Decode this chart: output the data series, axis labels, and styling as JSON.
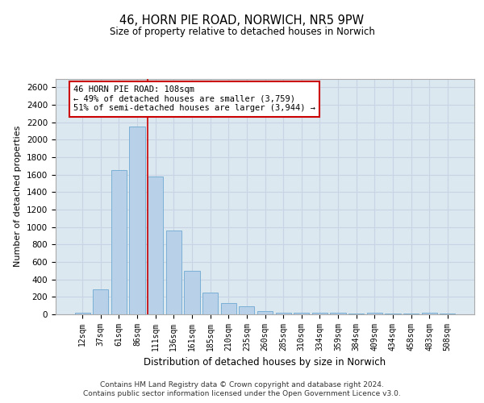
{
  "title1": "46, HORN PIE ROAD, NORWICH, NR5 9PW",
  "title2": "Size of property relative to detached houses in Norwich",
  "xlabel": "Distribution of detached houses by size in Norwich",
  "ylabel": "Number of detached properties",
  "categories": [
    "12sqm",
    "37sqm",
    "61sqm",
    "86sqm",
    "111sqm",
    "136sqm",
    "161sqm",
    "185sqm",
    "210sqm",
    "235sqm",
    "260sqm",
    "285sqm",
    "310sqm",
    "334sqm",
    "359sqm",
    "384sqm",
    "409sqm",
    "434sqm",
    "458sqm",
    "483sqm",
    "508sqm"
  ],
  "values": [
    20,
    285,
    1650,
    2150,
    1580,
    960,
    500,
    245,
    125,
    95,
    35,
    20,
    20,
    15,
    15,
    10,
    15,
    10,
    5,
    20,
    5
  ],
  "bar_color": "#b8d0e8",
  "bar_edge_color": "#7aafd4",
  "highlight_bar_index": 4,
  "highlight_line_color": "#cc0000",
  "annotation_text": "46 HORN PIE ROAD: 108sqm\n← 49% of detached houses are smaller (3,759)\n51% of semi-detached houses are larger (3,944) →",
  "annotation_box_facecolor": "#ffffff",
  "annotation_box_edgecolor": "#cc0000",
  "ylim": [
    0,
    2700
  ],
  "yticks": [
    0,
    200,
    400,
    600,
    800,
    1000,
    1200,
    1400,
    1600,
    1800,
    2000,
    2200,
    2400,
    2600
  ],
  "grid_color": "#c8d4e4",
  "background_color": "#dce8f0",
  "footer1": "Contains HM Land Registry data © Crown copyright and database right 2024.",
  "footer2": "Contains public sector information licensed under the Open Government Licence v3.0."
}
